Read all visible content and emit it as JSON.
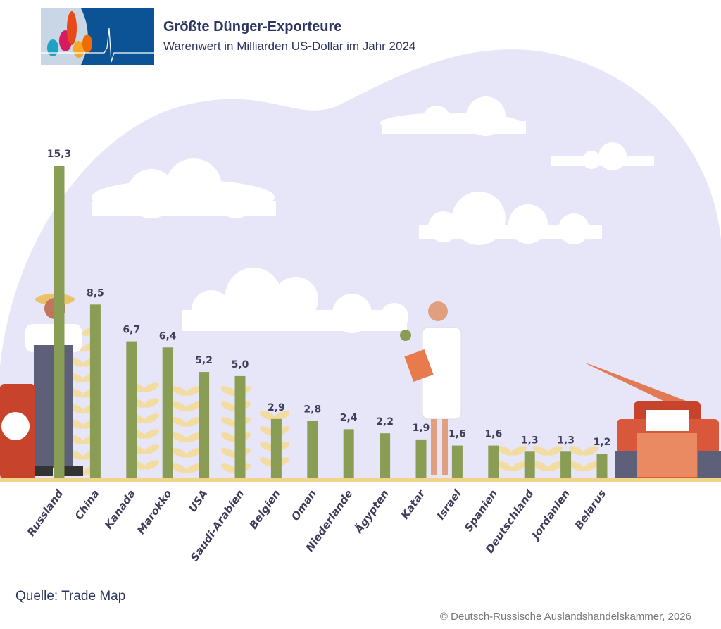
{
  "header": {
    "title": "Größte Dünger-Exporteure",
    "subtitle": "Warenwert in Milliarden US-Dollar im Jahr 2024"
  },
  "footer": {
    "source": "Quelle: Trade Map",
    "copyright": "© Deutsch-Russische Auslandshandelskammer, 2026"
  },
  "colors": {
    "bar": "#8a9d55",
    "ground": "#f1d38a",
    "background_blob": "#e6e6f8",
    "text": "#2d3561"
  },
  "chart_data": {
    "type": "bar",
    "title": "Größte Dünger-Exporteure",
    "subtitle": "Warenwert in Milliarden US-Dollar im Jahr 2024",
    "categories": [
      "Russland",
      "China",
      "Kanada",
      "Marokko",
      "USA",
      "Saudi-Arabien",
      "Belgien",
      "Oman",
      "Niederlande",
      "Ägypten",
      "Katar",
      "Israel",
      "Spanien",
      "Deutschland",
      "Jordanien",
      "Belarus"
    ],
    "values": [
      15.3,
      8.5,
      6.7,
      6.4,
      5.2,
      5.0,
      2.9,
      2.8,
      2.4,
      2.2,
      1.9,
      1.6,
      1.6,
      1.3,
      1.3,
      1.2
    ],
    "value_labels": [
      "15,3",
      "8,5",
      "6,7",
      "6,4",
      "5,2",
      "5,0",
      "2,9",
      "2,8",
      "2,4",
      "2,2",
      "1,9",
      "1,6",
      "1,6",
      "1,3",
      "1,3",
      "1,2"
    ],
    "xlabel": "",
    "ylabel": "",
    "ylim": [
      0,
      15.3
    ],
    "grid": false,
    "legend": "none"
  }
}
